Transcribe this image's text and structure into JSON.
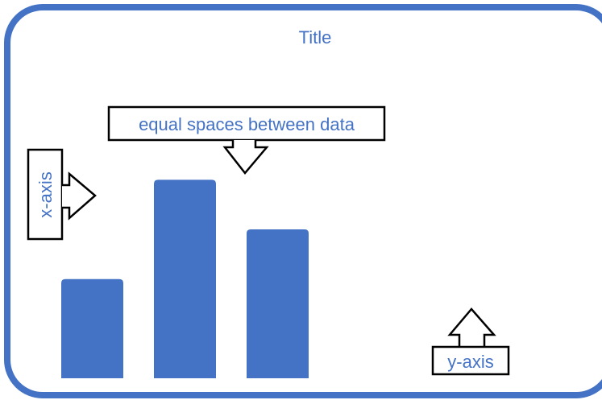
{
  "title": "Title",
  "callouts": {
    "spacing_note": "equal spaces between data",
    "x_axis": "x-axis",
    "y_axis": "y-axis"
  },
  "colors": {
    "accent": "#4472c4",
    "frame": "#4472c4",
    "outline": "#000000",
    "background": "#ffffff"
  },
  "chart_data": {
    "type": "bar",
    "categories": [
      "",
      "",
      ""
    ],
    "values": [
      4,
      8,
      6
    ],
    "ylim": [
      0,
      8.5
    ],
    "grid": false,
    "legend": "none"
  }
}
